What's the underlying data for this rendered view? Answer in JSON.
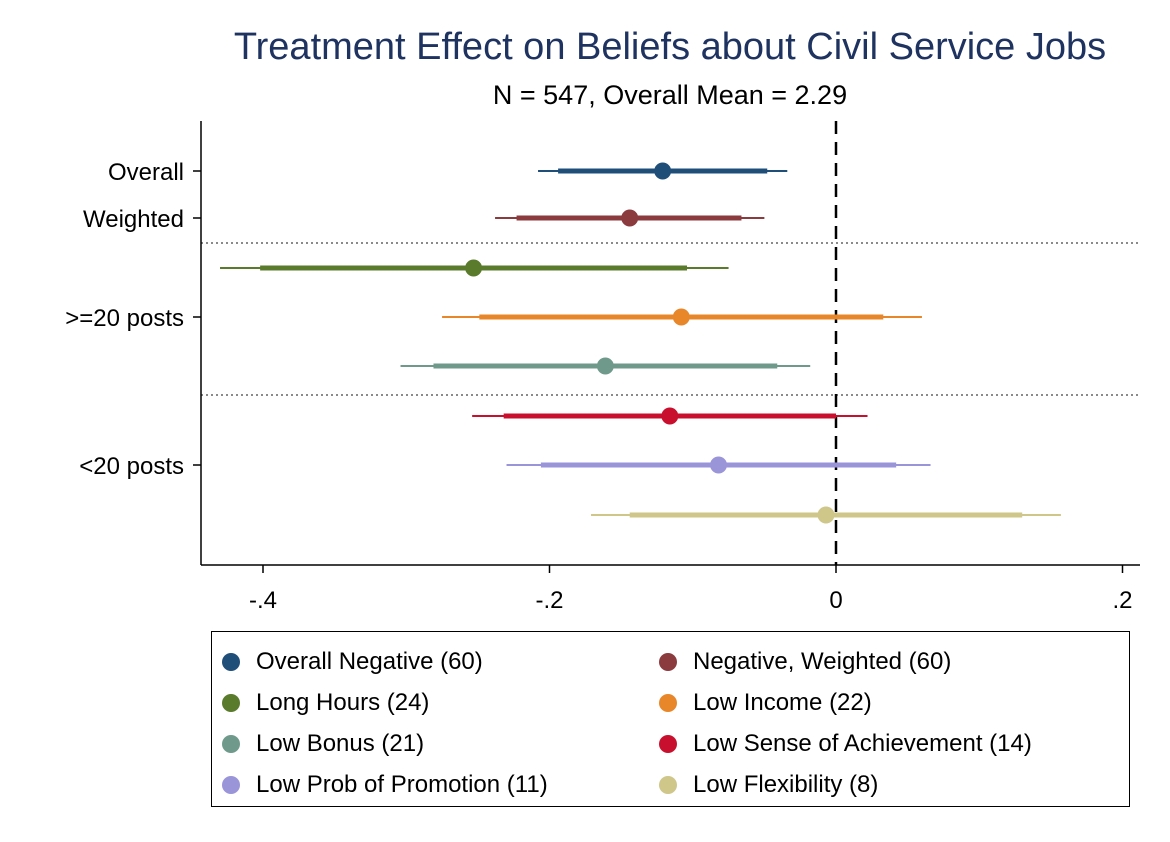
{
  "chart_data": {
    "type": "scatter",
    "title": "Treatment Effect on Beliefs about Civil Service Jobs",
    "subtitle": "N = 547, Overall Mean = 2.29",
    "xlabel": "",
    "ylabel": "",
    "xlim": [
      -0.44,
      0.212
    ],
    "x_ticks": [
      {
        "value": -0.4,
        "label": "-.4"
      },
      {
        "value": -0.2,
        "label": "-.2"
      },
      {
        "value": 0,
        "label": "0"
      },
      {
        "value": 0.2,
        "label": ".2"
      }
    ],
    "y_group_labels": [
      {
        "label": "Overall",
        "row": 0
      },
      {
        "label": "Weighted",
        "row": 1
      },
      {
        "label": ">=20 posts",
        "row": 3
      },
      {
        "label": "<20 posts",
        "row": 6
      }
    ],
    "reference_line": {
      "x": 0,
      "style": "dashed"
    },
    "group_separators": [
      "after Weighted",
      "after Low Bonus"
    ],
    "series": [
      {
        "name": "Overall Negative (60)",
        "color": "#1f4e79",
        "estimate": -0.121,
        "ci90": [
          -0.194,
          -0.048
        ],
        "ci95": [
          -0.208,
          -0.034
        ]
      },
      {
        "name": "Negative, Weighted (60)",
        "color": "#8b3a3e",
        "estimate": -0.144,
        "ci90": [
          -0.223,
          -0.066
        ],
        "ci95": [
          -0.238,
          -0.05
        ]
      },
      {
        "name": "Long Hours (24)",
        "color": "#5a7a2c",
        "estimate": -0.253,
        "ci90": [
          -0.402,
          -0.104
        ],
        "ci95": [
          -0.43,
          -0.075
        ]
      },
      {
        "name": "Low Income (22)",
        "color": "#e8872a",
        "estimate": -0.108,
        "ci90": [
          -0.249,
          0.033
        ],
        "ci95": [
          -0.275,
          0.06
        ]
      },
      {
        "name": "Low Bonus (21)",
        "color": "#6f9a8b",
        "estimate": -0.161,
        "ci90": [
          -0.281,
          -0.041
        ],
        "ci95": [
          -0.304,
          -0.018
        ]
      },
      {
        "name": "Low Sense of Achievement (14)",
        "color": "#c8102e",
        "estimate": -0.116,
        "ci90": [
          -0.232,
          0.0
        ],
        "ci95": [
          -0.254,
          0.022
        ]
      },
      {
        "name": "Low Prob of Promotion (11)",
        "color": "#9a94d8",
        "estimate": -0.082,
        "ci90": [
          -0.206,
          0.042
        ],
        "ci95": [
          -0.23,
          0.066
        ]
      },
      {
        "name": "Low Flexibility (8)",
        "color": "#cfc68a",
        "estimate": -0.007,
        "ci90": [
          -0.144,
          0.13
        ],
        "ci95": [
          -0.171,
          0.157
        ]
      }
    ],
    "legend_position": "bottom",
    "grid": false
  }
}
